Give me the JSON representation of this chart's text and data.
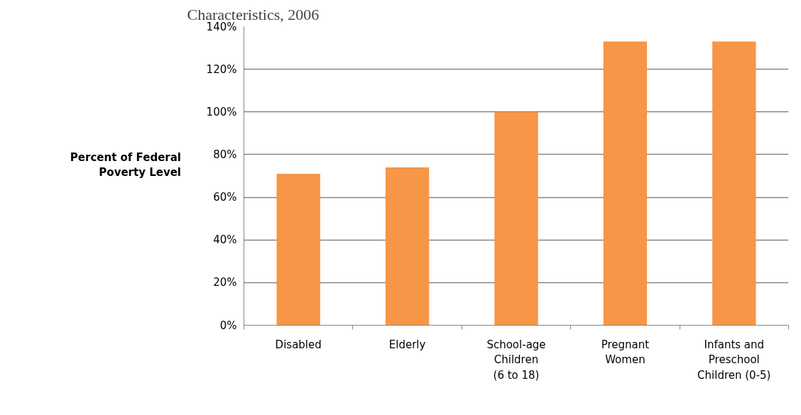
{
  "chart_data": {
    "type": "bar",
    "title": "Characteristics, 2006",
    "ylabel": "Percent of Federal\nPoverty Level",
    "categories": [
      "Disabled",
      "Elderly",
      "School-age\nChildren\n(6 to 18)",
      "Pregnant\nWomen",
      "Infants and\nPreschool\nChildren (0-5)"
    ],
    "values": [
      71,
      74,
      100,
      133,
      133
    ],
    "color": "#f79646",
    "ylim": [
      0,
      140
    ],
    "yticks": [
      {
        "value": 0,
        "label": "0%"
      },
      {
        "value": 20,
        "label": "20%"
      },
      {
        "value": 40,
        "label": "40%"
      },
      {
        "value": 60,
        "label": "60%"
      },
      {
        "value": 80,
        "label": "80%"
      },
      {
        "value": 100,
        "label": "100%"
      },
      {
        "value": 120,
        "label": "120%"
      },
      {
        "value": 140,
        "label": "140%"
      }
    ],
    "grid": "y"
  }
}
